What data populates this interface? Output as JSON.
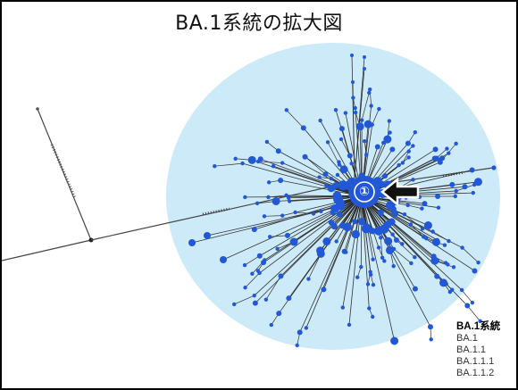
{
  "title": "BA.1系統の拡大図",
  "marker": {
    "label": "①",
    "icon": "left-arrow-icon"
  },
  "legend": {
    "header": "BA.1系統",
    "items": [
      "BA.1",
      "BA.1.1",
      "BA.1.1.1",
      "BA.1.1.2"
    ]
  },
  "colors": {
    "background_circle": "#cceaf7",
    "node": "#2257d6",
    "edge": "#222222",
    "marker_ring": "#ffffff"
  }
}
